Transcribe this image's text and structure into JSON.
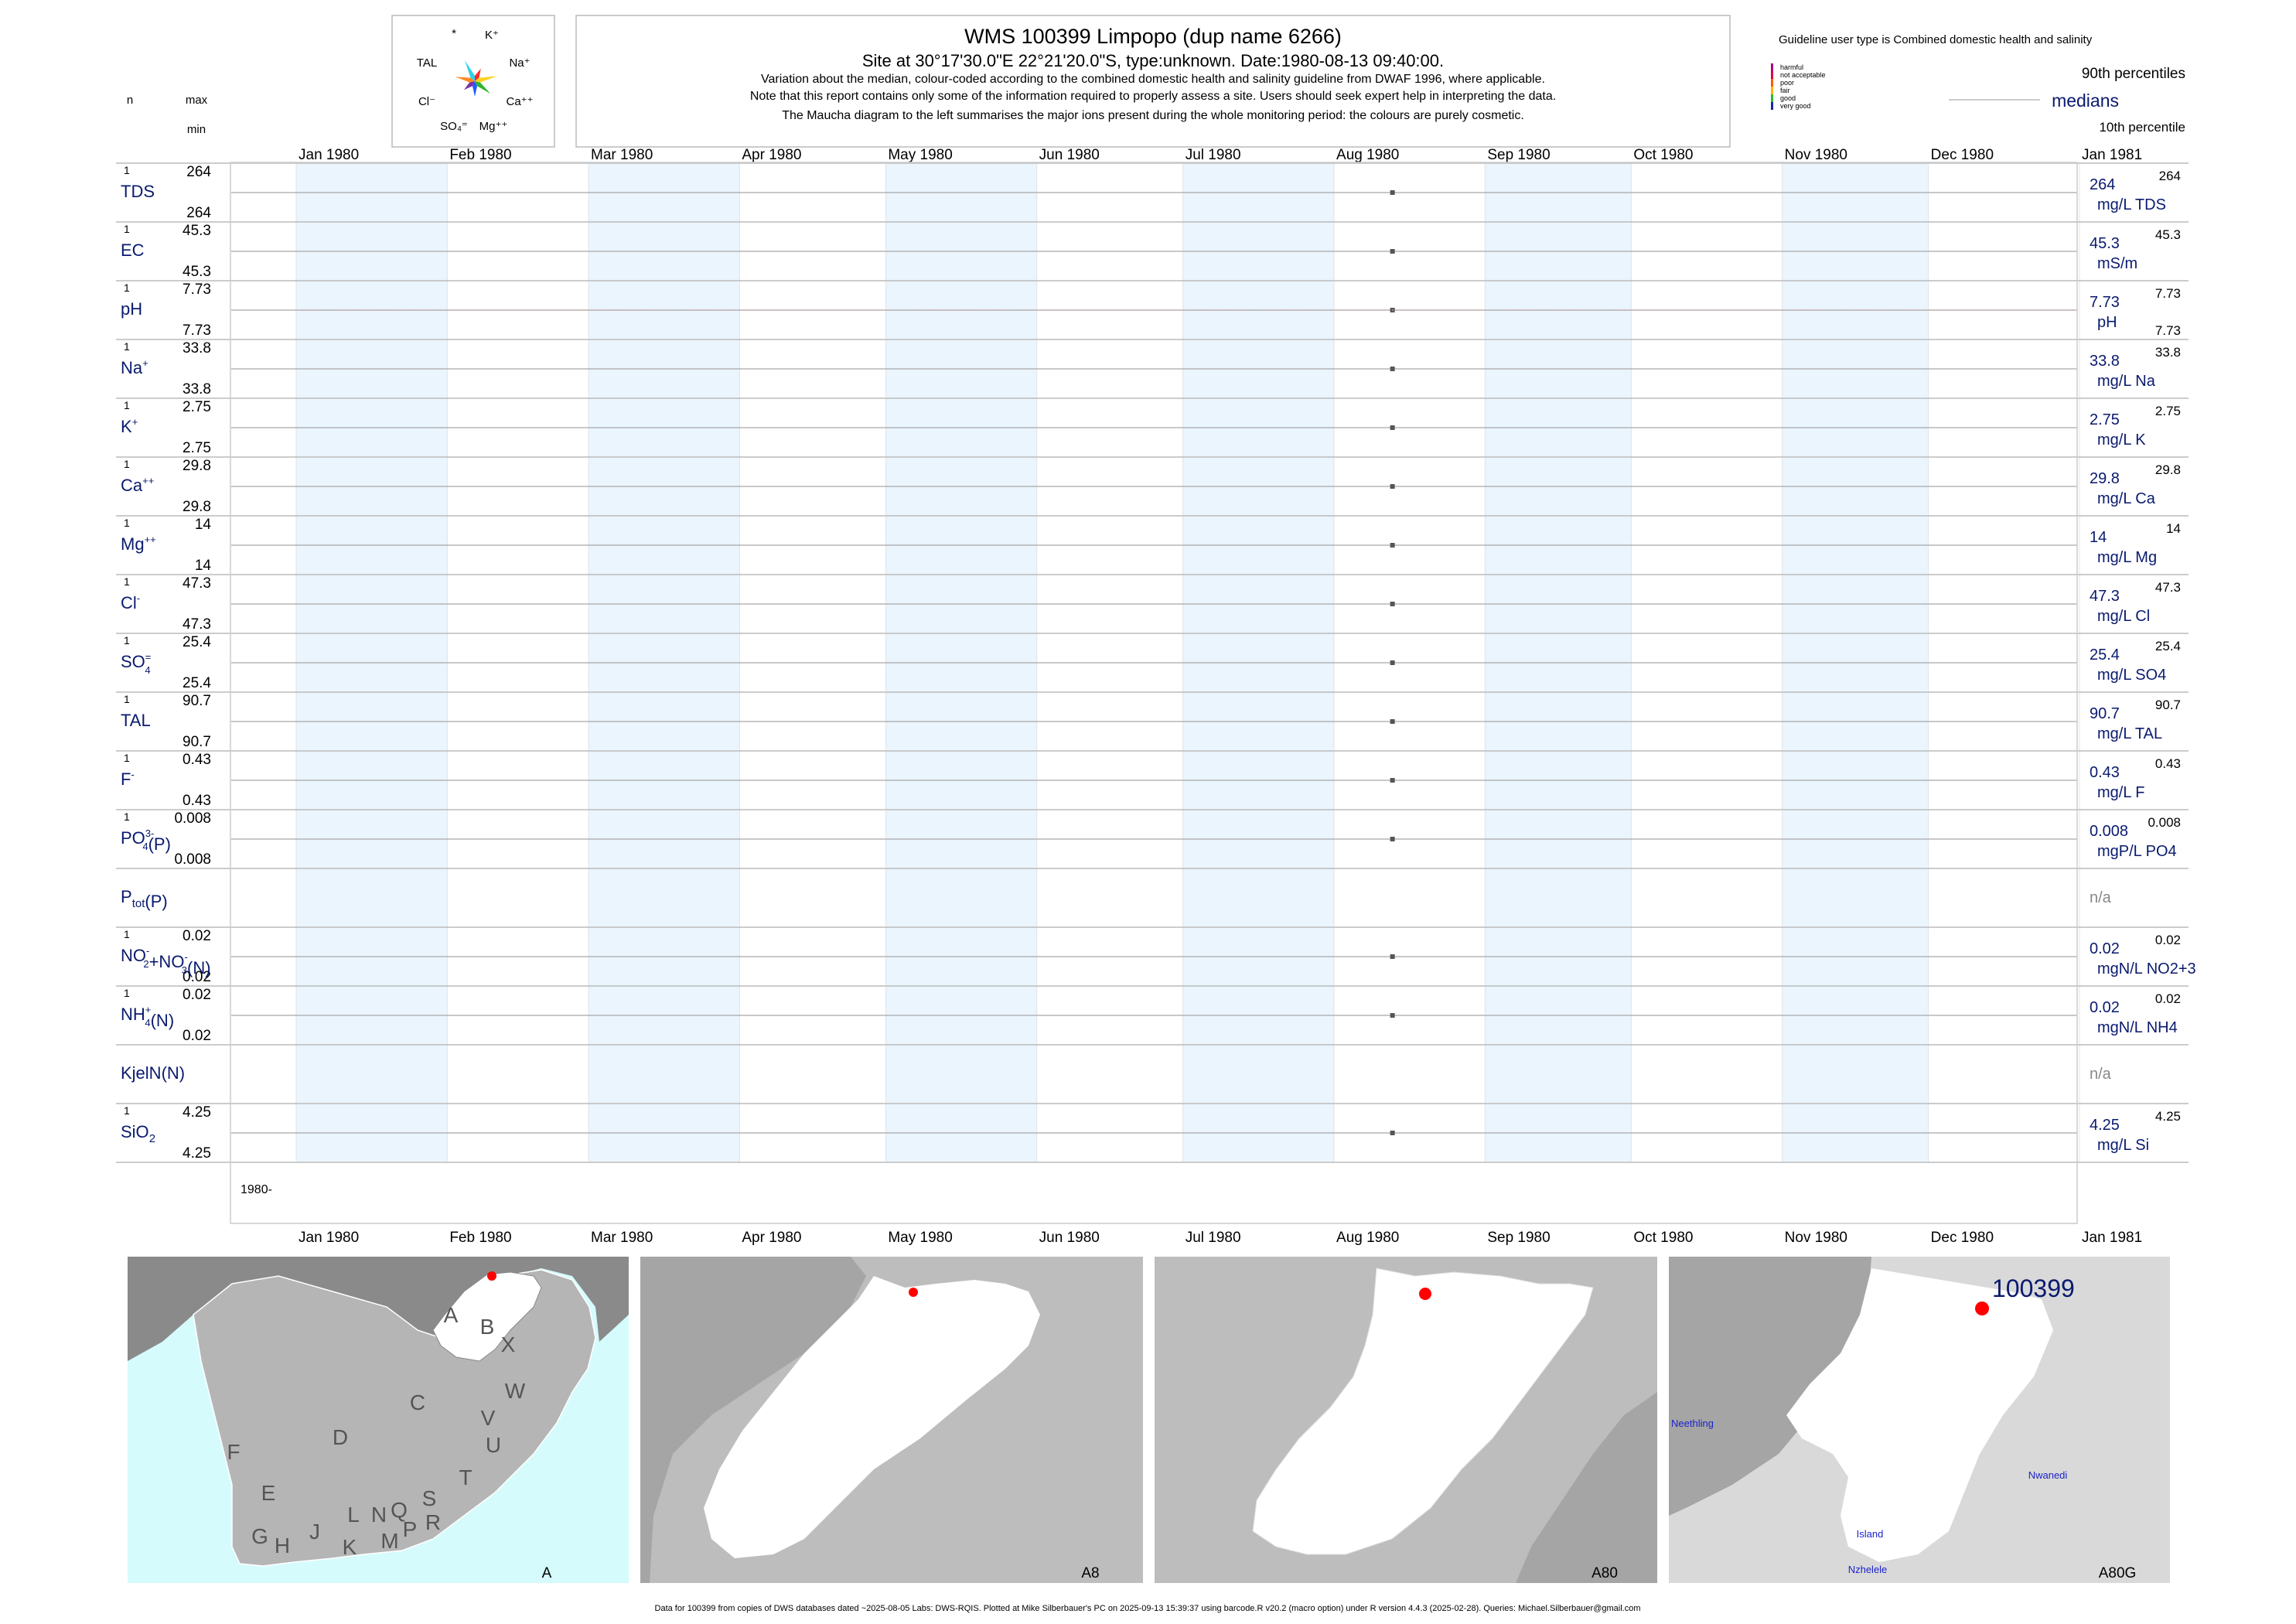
{
  "header": {
    "title": "WMS 100399  Limpopo (dup name 6266)",
    "subtitle": "Site at 30°17'30.0\"E 22°21'20.0\"S, type:unknown. Date:1980-08-13 09:40:00.",
    "note1": "Variation about the median,  colour-coded according to the combined domestic health and salinity guideline from DWAF 1996, where applicable.",
    "note2": "Note that this report contains only some of the information required to properly assess a site. Users should seek expert help in interpreting the data.",
    "note3": "The Maucha diagram to the left summarises the major ions present during the whole monitoring period: the colours are purely cosmetic."
  },
  "left_header": {
    "n": "n",
    "max": "max",
    "min": "min"
  },
  "maucha": {
    "star": "*",
    "labels": [
      "K⁺",
      "Na⁺",
      "Ca⁺⁺",
      "Mg⁺⁺",
      "SO₄⁼",
      "Cl⁻",
      "TAL"
    ],
    "colors": [
      "#ff2a2a",
      "#ffd21f",
      "#2fb52f",
      "#1e5eff",
      "#7a2fa8",
      "#ff8a1f",
      "#2fd1e8"
    ]
  },
  "legend": {
    "guideline_text": "Guideline user type is Combined domestic health and salinity",
    "categories": [
      {
        "label": "harmful",
        "color": "#b0007a"
      },
      {
        "label": "not acceptable",
        "color": "#e0004a"
      },
      {
        "label": "poor",
        "color": "#ff5a00"
      },
      {
        "label": "fair",
        "color": "#ffb400"
      },
      {
        "label": "good",
        "color": "#2fb52f"
      },
      {
        "label": "very good",
        "color": "#1a24a8"
      }
    ],
    "p90": "90th percentiles",
    "medians": "medians",
    "p10": "10th percentile"
  },
  "chart_data": {
    "type": "scatter",
    "x_ticks": [
      "Jan 1980",
      "Feb 1980",
      "Mar 1980",
      "Apr 1980",
      "May 1980",
      "Jun 1980",
      "Jul 1980",
      "Aug 1980",
      "Sep 1980",
      "Oct 1980",
      "Nov 1980",
      "Dec 1980",
      "Jan 1981"
    ],
    "xlim": [
      "1980-01-01",
      "1981-01-01"
    ],
    "sample_date": "1980-08-13",
    "year_label": "1980-",
    "panels": [
      {
        "name": "TDS",
        "sup": "",
        "sub": "",
        "n": "1",
        "max": "264",
        "min": "264",
        "median": "264",
        "unit": "mg/L TDS",
        "right_max": "264",
        "right_min": "",
        "sampled": true
      },
      {
        "name": "EC",
        "sup": "",
        "sub": "",
        "n": "1",
        "max": "45.3",
        "min": "45.3",
        "median": "45.3",
        "unit": "mS/m",
        "right_max": "45.3",
        "right_min": "",
        "sampled": true
      },
      {
        "name": "pH",
        "sup": "",
        "sub": "",
        "n": "1",
        "max": "7.73",
        "min": "7.73",
        "median": "7.73",
        "unit": "pH",
        "right_max": "7.73",
        "right_min": "7.73",
        "sampled": true
      },
      {
        "name": "Na",
        "sup": "+",
        "sub": "",
        "n": "1",
        "max": "33.8",
        "min": "33.8",
        "median": "33.8",
        "unit": "mg/L Na",
        "right_max": "33.8",
        "right_min": "",
        "sampled": true
      },
      {
        "name": "K",
        "sup": "+",
        "sub": "",
        "n": "1",
        "max": "2.75",
        "min": "2.75",
        "median": "2.75",
        "unit": "mg/L K",
        "right_max": "2.75",
        "right_min": "",
        "sampled": true
      },
      {
        "name": "Ca",
        "sup": "++",
        "sub": "",
        "n": "1",
        "max": "29.8",
        "min": "29.8",
        "median": "29.8",
        "unit": "mg/L Ca",
        "right_max": "29.8",
        "right_min": "",
        "sampled": true
      },
      {
        "name": "Mg",
        "sup": "++",
        "sub": "",
        "n": "1",
        "max": "14",
        "min": "14",
        "median": "14",
        "unit": "mg/L Mg",
        "right_max": "14",
        "right_min": "",
        "sampled": true
      },
      {
        "name": "Cl",
        "sup": "-",
        "sub": "",
        "n": "1",
        "max": "47.3",
        "min": "47.3",
        "median": "47.3",
        "unit": "mg/L Cl",
        "right_max": "47.3",
        "right_min": "",
        "sampled": true
      },
      {
        "name": "SO",
        "sup": "=",
        "sub": "4",
        "n": "1",
        "max": "25.4",
        "min": "25.4",
        "median": "25.4",
        "unit": "mg/L SO4",
        "right_max": "25.4",
        "right_min": "",
        "sampled": true
      },
      {
        "name": "TAL",
        "sup": "",
        "sub": "",
        "n": "1",
        "max": "90.7",
        "min": "90.7",
        "median": "90.7",
        "unit": "mg/L TAL",
        "right_max": "90.7",
        "right_min": "",
        "sampled": true
      },
      {
        "name": "F",
        "sup": "-",
        "sub": "",
        "n": "1",
        "max": "0.43",
        "min": "0.43",
        "median": "0.43",
        "unit": "mg/L F",
        "right_max": "0.43",
        "right_min": "",
        "sampled": true
      },
      {
        "name": "PO",
        "sup": "3-",
        "sub": "4",
        "suffix": "(P)",
        "n": "1",
        "max": "0.008",
        "min": "0.008",
        "median": "0.008",
        "unit": "mgP/L PO4",
        "right_max": "0.008",
        "right_min": "",
        "sampled": true
      },
      {
        "name": "P",
        "sup": "",
        "sub": "tot",
        "suffix": "(P)",
        "n": "",
        "max": "",
        "min": "",
        "median": "n/a",
        "unit": "",
        "right_max": "",
        "right_min": "",
        "sampled": false
      },
      {
        "name": "NO",
        "sup": "-",
        "sub": "2",
        "suffix": "+NO",
        "sup2": "-",
        "sub2": "3",
        "suffix2": "(N)",
        "n": "1",
        "max": "0.02",
        "min": "0.02",
        "median": "0.02",
        "unit": "mgN/L NO2+3",
        "right_max": "0.02",
        "right_min": "",
        "sampled": true
      },
      {
        "name": "NH",
        "sup": "+",
        "sub": "4",
        "suffix": "(N)",
        "n": "1",
        "max": "0.02",
        "min": "0.02",
        "median": "0.02",
        "unit": "mgN/L NH4",
        "right_max": "0.02",
        "right_min": "",
        "sampled": true
      },
      {
        "name": "KjelN(N)",
        "sup": "",
        "sub": "",
        "n": "",
        "max": "",
        "min": "",
        "median": "n/a",
        "unit": "",
        "right_max": "",
        "right_min": "",
        "sampled": false
      },
      {
        "name": "SiO",
        "sup": "",
        "sub": "2",
        "n": "1",
        "max": "4.25",
        "min": "4.25",
        "median": "4.25",
        "unit": "mg/L Si",
        "right_max": "4.25",
        "right_min": "",
        "sampled": true
      }
    ]
  },
  "maps": {
    "map1": {
      "caption": "A",
      "region_letters": [
        "A",
        "B",
        "X",
        "W",
        "C",
        "D",
        "V",
        "U",
        "F",
        "T",
        "E",
        "S",
        "N",
        "Q",
        "R",
        "L",
        "P",
        "G",
        "H",
        "J",
        "K",
        "M"
      ]
    },
    "map2": {
      "caption": "A8"
    },
    "map3": {
      "caption": "A80"
    },
    "map4": {
      "caption": "A80G",
      "site_label": "100399",
      "places": [
        "Neethling",
        "Nwanedi",
        "Island",
        "Nzhelele"
      ]
    }
  },
  "footer": "Data for 100399 from copies of DWS databases dated ~2025-08-05 Labs: DWS-RQIS. Plotted at Mike Silberbauer's PC on 2025-09-13 15:39:37 using barcode.R v20.2 (macro option) under R version 4.4.3 (2025-02-28). Queries: Michael.Silberbauer@gmail.com"
}
